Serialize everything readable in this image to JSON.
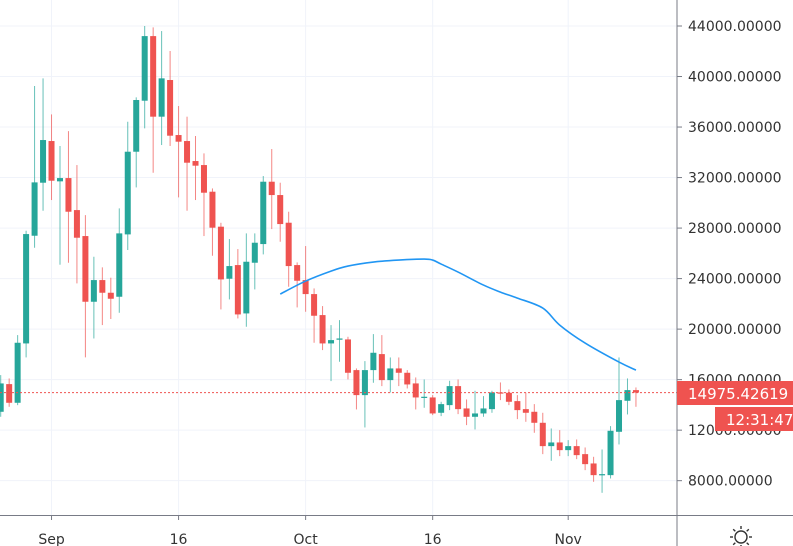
{
  "chart_data": {
    "type": "candlestick",
    "title": "",
    "colors": {
      "up": "#26a69a",
      "down": "#ef5350",
      "moving_average": "#2196f3",
      "grid": "#f0f3fa"
    },
    "ylim": [
      7000,
      44500
    ],
    "y_ticks": [
      "8000.00000",
      "12000.00000",
      "16000.00000",
      "20000.00000",
      "24000.00000",
      "28000.00000",
      "32000.00000",
      "36000.00000",
      "40000.00000",
      "44000.00000"
    ],
    "x_ticks": [
      {
        "date": "Sep 1",
        "label": "Sep"
      },
      {
        "date": "Sep 16",
        "label": "16"
      },
      {
        "date": "Oct 1",
        "label": "Oct"
      },
      {
        "date": "Oct 16",
        "label": "16"
      },
      {
        "date": "Nov 1",
        "label": "Nov"
      }
    ],
    "grid": true,
    "candles_columns": [
      "date",
      "open",
      "high",
      "low",
      "close"
    ],
    "candles": [
      [
        "Aug 26",
        13455,
        16360,
        13060,
        15700
      ],
      [
        "Aug 27",
        15646,
        16095,
        13851,
        14168
      ],
      [
        "Aug 28",
        14168,
        19527,
        13980,
        18920
      ],
      [
        "Aug 29",
        18867,
        27790,
        17760,
        27526
      ],
      [
        "Aug 30",
        27394,
        39250,
        26444,
        31618
      ],
      [
        "Aug 31",
        31592,
        39855,
        29375,
        34971
      ],
      [
        "Sep 1",
        34892,
        37000,
        30220,
        31750
      ],
      [
        "Sep 2",
        31700,
        34500,
        25100,
        31960
      ],
      [
        "Sep 3",
        31960,
        35680,
        25255,
        29295
      ],
      [
        "Sep 4",
        29425,
        32990,
        23620,
        27236
      ],
      [
        "Sep 5",
        27368,
        29030,
        17760,
        22167
      ],
      [
        "Sep 6",
        22167,
        25730,
        19260,
        23883
      ],
      [
        "Sep 7",
        23883,
        24890,
        20320,
        22880
      ],
      [
        "Sep 8",
        22880,
        24070,
        20800,
        22405
      ],
      [
        "Sep 9",
        22563,
        29560,
        21295,
        27580
      ],
      [
        "Sep 10",
        27500,
        36420,
        26260,
        34046
      ],
      [
        "Sep 11",
        34046,
        38350,
        31220,
        38140
      ],
      [
        "Sep 12",
        38085,
        44000,
        35895,
        43200
      ],
      [
        "Sep 13",
        43200,
        43890,
        32384,
        36820
      ],
      [
        "Sep 14",
        36820,
        43600,
        34575,
        39855
      ],
      [
        "Sep 15",
        39723,
        42020,
        34500,
        35314
      ],
      [
        "Sep 16",
        35367,
        37663,
        30430,
        34840
      ],
      [
        "Sep 17",
        34892,
        36820,
        29375,
        33176
      ],
      [
        "Sep 18",
        33308,
        35290,
        30220,
        32940
      ],
      [
        "Sep 19",
        32990,
        33915,
        27368,
        30800
      ],
      [
        "Sep 20",
        30880,
        31140,
        25810,
        28030
      ],
      [
        "Sep 21",
        28110,
        28420,
        21560,
        23935
      ],
      [
        "Sep 22",
        23989,
        27130,
        22352,
        24992
      ],
      [
        "Sep 23",
        25071,
        26338,
        20847,
        21164
      ],
      [
        "Sep 24",
        21243,
        27580,
        20187,
        25335
      ],
      [
        "Sep 25",
        25256,
        27580,
        23144,
        26840
      ],
      [
        "Sep 26",
        26734,
        32120,
        25916,
        31671
      ],
      [
        "Sep 27",
        31671,
        34258,
        27920,
        30615
      ],
      [
        "Sep 28",
        30615,
        31592,
        26919,
        28318
      ],
      [
        "Sep 29",
        28424,
        29295,
        23355,
        24992
      ],
      [
        "Sep 30",
        25071,
        25282,
        21718,
        23830
      ],
      [
        "Oct 1",
        23883,
        26576,
        21375,
        22774
      ],
      [
        "Oct 2",
        22774,
        23223,
        18920,
        21059
      ],
      [
        "Oct 3",
        21111,
        21824,
        18340,
        18867
      ],
      [
        "Oct 4",
        18867,
        20318,
        15884,
        19131
      ],
      [
        "Oct 5",
        19160,
        20715,
        17415,
        19260
      ],
      [
        "Oct 6",
        19184,
        19395,
        16016,
        16544
      ],
      [
        "Oct 7",
        16755,
        16887,
        13640,
        14775
      ],
      [
        "Oct 8",
        14775,
        17467,
        12214,
        16755
      ],
      [
        "Oct 9",
        16755,
        19606,
        15752,
        18128
      ],
      [
        "Oct 10",
        18022,
        19527,
        15488,
        15963
      ],
      [
        "Oct 11",
        15963,
        17757,
        14986,
        16887
      ],
      [
        "Oct 12",
        16887,
        17757,
        15488,
        16544
      ],
      [
        "Oct 13",
        16544,
        16755,
        15303,
        15620
      ],
      [
        "Oct 14",
        15700,
        16174,
        13640,
        14590
      ],
      [
        "Oct 15",
        14590,
        16016,
        13772,
        14645
      ],
      [
        "Oct 16",
        14590,
        14775,
        13191,
        13323
      ],
      [
        "Oct 17",
        13376,
        14247,
        13112,
        14062
      ],
      [
        "Oct 18",
        13983,
        15910,
        13587,
        15488
      ],
      [
        "Oct 19",
        15488,
        16016,
        13270,
        13666
      ],
      [
        "Oct 20",
        13719,
        14432,
        12399,
        13059
      ],
      [
        "Oct 21",
        13059,
        15118,
        12056,
        13323
      ],
      [
        "Oct 22",
        13323,
        14696,
        13059,
        13719
      ],
      [
        "Oct 23",
        13666,
        15118,
        13376,
        14986
      ],
      [
        "Oct 24",
        14986,
        15778,
        14379,
        14907
      ],
      [
        "Oct 25",
        14960,
        15224,
        13983,
        14247
      ],
      [
        "Oct 26",
        14300,
        14775,
        12874,
        13587
      ],
      [
        "Oct 27",
        13666,
        14960,
        12663,
        13376
      ],
      [
        "Oct 28",
        13455,
        14062,
        11792,
        12584
      ],
      [
        "Oct 29",
        12584,
        13376,
        10102,
        10736
      ],
      [
        "Oct 30",
        10736,
        12135,
        9574,
        11026
      ],
      [
        "Oct 31",
        11026,
        12003,
        9944,
        10419
      ],
      [
        "Nov 1",
        10419,
        11211,
        9944,
        10736
      ],
      [
        "Nov 2",
        10736,
        11264,
        9706,
        10023
      ],
      [
        "Nov 3",
        10102,
        10630,
        8835,
        9310
      ],
      [
        "Nov 4",
        9363,
        9891,
        7911,
        8439
      ],
      [
        "Nov 5",
        8439,
        10472,
        7040,
        8518
      ],
      [
        "Nov 6",
        8439,
        12320,
        8175,
        11950
      ],
      [
        "Nov 7",
        11871,
        17758,
        10868,
        14379
      ],
      [
        "Nov 8",
        14326,
        16095,
        13244,
        15171
      ],
      [
        "Nov 9",
        15171,
        15382,
        13850,
        14975.42619
      ]
    ],
    "moving_average": [
      [
        "Sep 28",
        22774
      ],
      [
        "Oct 1",
        23804
      ],
      [
        "Oct 4",
        24596
      ],
      [
        "Oct 6",
        24992
      ],
      [
        "Oct 9",
        25309
      ],
      [
        "Oct 12",
        25467
      ],
      [
        "Oct 15",
        25546
      ],
      [
        "Oct 16",
        25467
      ],
      [
        "Oct 17",
        25150
      ],
      [
        "Oct 19",
        24517
      ],
      [
        "Oct 22",
        23488
      ],
      [
        "Oct 24",
        22933
      ],
      [
        "Oct 26",
        22458
      ],
      [
        "Oct 29",
        21666
      ],
      [
        "Oct 31",
        20320
      ],
      [
        "Nov 3",
        18894
      ],
      [
        "Nov 7",
        17389
      ],
      [
        "Nov 9",
        16755
      ]
    ],
    "last_price": {
      "value": 14975.42619,
      "label": "14975.42619",
      "countdown": "12:31:47"
    }
  },
  "icons": {
    "settings": "sun-gear-icon"
  }
}
